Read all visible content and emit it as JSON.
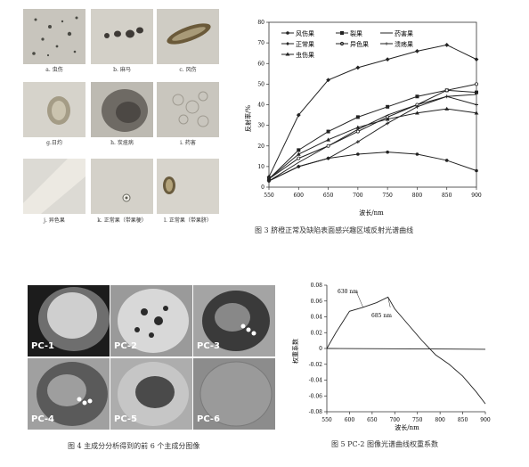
{
  "fig2_thumbs": [
    {
      "label": "a. 虫伤"
    },
    {
      "label": "b. 麻马"
    },
    {
      "label": "c. 风伤"
    },
    {
      "label": "g.日灼"
    },
    {
      "label": "h. 炭疽病"
    },
    {
      "label": "i. 药害"
    },
    {
      "label": "j. 异色果"
    },
    {
      "label": "k. 正常果（带果梗）"
    },
    {
      "label": "l. 正常果（带果脐）"
    }
  ],
  "fig3": {
    "caption": "图 3   脐橙正常及缺陷表面感兴趣区域反射光谱曲线",
    "legend": [
      "风伤果",
      "裂果",
      "药害果",
      "正常果",
      "异色果",
      "溃疡果",
      "虫伤果"
    ]
  },
  "fig4": {
    "caption": "图 4   主成分分析得到的前 6 个主成分图像",
    "panels": [
      "PC-1",
      "PC-2",
      "PC-3",
      "PC-4",
      "PC-5",
      "PC-6"
    ]
  },
  "fig5": {
    "caption": "图 5   PC-2 图像光谱曲线权重系数",
    "annot1": "630 nm",
    "annot2": "685 nm"
  },
  "chart_data": [
    {
      "type": "line",
      "xlabel": "波长/nm",
      "ylabel": "反射率/%",
      "xlim": [
        550,
        900
      ],
      "ylim": [
        0,
        80
      ],
      "x": [
        550,
        600,
        650,
        700,
        750,
        800,
        850,
        900
      ],
      "series": [
        {
          "name": "风伤果",
          "values": [
            3,
            10,
            14,
            16,
            17,
            16,
            13,
            8
          ]
        },
        {
          "name": "裂果",
          "values": [
            4,
            18,
            27,
            34,
            39,
            44,
            47,
            46
          ]
        },
        {
          "name": "药害果",
          "values": [
            3,
            12,
            20,
            28,
            35,
            40,
            44,
            45
          ]
        },
        {
          "name": "正常果",
          "values": [
            5,
            35,
            52,
            58,
            62,
            66,
            69,
            62
          ]
        },
        {
          "name": "异色果",
          "values": [
            4,
            14,
            20,
            27,
            34,
            40,
            47,
            50
          ]
        },
        {
          "name": "溃疡果",
          "values": [
            3,
            10,
            14,
            22,
            31,
            39,
            44,
            40
          ]
        },
        {
          "name": "虫伤果",
          "values": [
            4,
            16,
            23,
            29,
            33,
            36,
            38,
            36
          ]
        }
      ]
    },
    {
      "type": "line",
      "xlabel": "波长/nm",
      "ylabel": "权重系数",
      "xlim": [
        550,
        900
      ],
      "ylim": [
        -0.08,
        0.08
      ],
      "series": [
        {
          "values": [
            [
              550,
              0.0
            ],
            [
              570,
              0.02
            ],
            [
              600,
              0.047
            ],
            [
              630,
              0.052
            ],
            [
              660,
              0.058
            ],
            [
              685,
              0.065
            ],
            [
              700,
              0.05
            ],
            [
              730,
              0.03
            ],
            [
              760,
              0.01
            ],
            [
              790,
              -0.008
            ],
            [
              820,
              -0.02
            ],
            [
              850,
              -0.035
            ],
            [
              880,
              -0.055
            ],
            [
              900,
              -0.07
            ]
          ]
        },
        {
          "values": [
            [
              550,
              0.0
            ],
            [
              900,
              -0.001
            ]
          ]
        }
      ]
    }
  ]
}
